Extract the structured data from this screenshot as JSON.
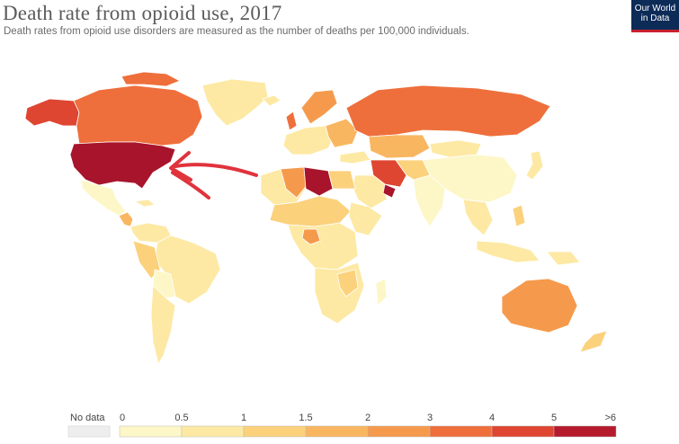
{
  "title": "Death rate from opioid use, 2017",
  "subtitle": "Death rates from opioid use disorders are measured as the number of deaths per 100,000 individuals.",
  "logo": {
    "line1": "Our World",
    "line2": "in Data",
    "background": "#0d2b57",
    "accent": "#c8202f"
  },
  "legend": {
    "no_data_label": "No data",
    "no_data_color": "#eeeeee",
    "ticks": [
      "0",
      "0.5",
      "1",
      "1.5",
      "2",
      "3",
      "4",
      "5",
      ">6"
    ],
    "colors": [
      "#fdf6c7",
      "#fde9a4",
      "#fbd17c",
      "#f9b660",
      "#f59a4c",
      "#ee6f3c",
      "#de4632",
      "#b51b2c"
    ]
  },
  "annotation": {
    "arrow": "red-arrow-pointing-to-united-states",
    "arrow_color": "#e0333c"
  }
}
